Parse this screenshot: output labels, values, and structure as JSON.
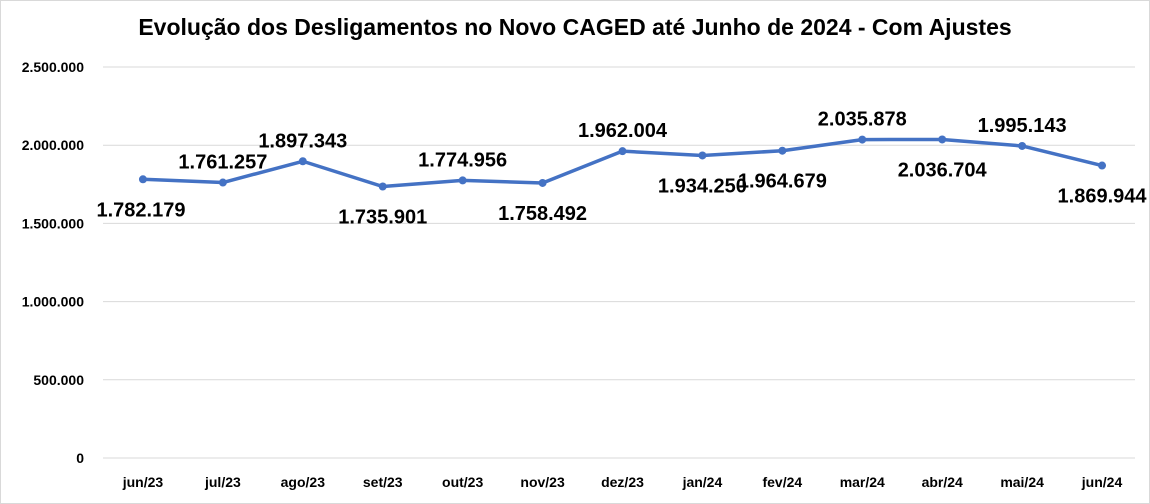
{
  "chart_data": {
    "type": "line",
    "title": "Evolução dos Desligamentos no Novo CAGED até Junho de 2024 - Com Ajustes",
    "categories": [
      "jun/23",
      "jul/23",
      "ago/23",
      "set/23",
      "out/23",
      "nov/23",
      "dez/23",
      "jan/24",
      "fev/24",
      "mar/24",
      "abr/24",
      "mai/24",
      "jun/24"
    ],
    "series": [
      {
        "values": [
          1782179,
          1761257,
          1897343,
          1735901,
          1774956,
          1758492,
          1962004,
          1934250,
          1964679,
          2035878,
          2036704,
          1995143,
          1869944
        ],
        "labels": [
          "1.782.179",
          "1.761.257",
          "1.897.343",
          "1.735.901",
          "1.774.956",
          "1.758.492",
          "1.962.004",
          "1.934.250",
          "1.964.679",
          "2.035.878",
          "2.036.704",
          "1.995.143",
          "1.869.944"
        ],
        "color": "#4472c4"
      }
    ],
    "ylim": [
      0,
      2500000
    ],
    "yticks": [
      0,
      500000,
      1000000,
      1500000,
      2000000,
      2500000
    ],
    "ytick_labels": [
      "0",
      "500.000",
      "1.000.000",
      "1.500.000",
      "2.000.000",
      "2.500.000"
    ],
    "grid": true,
    "legend": "none",
    "xlabel": "",
    "ylabel": ""
  }
}
